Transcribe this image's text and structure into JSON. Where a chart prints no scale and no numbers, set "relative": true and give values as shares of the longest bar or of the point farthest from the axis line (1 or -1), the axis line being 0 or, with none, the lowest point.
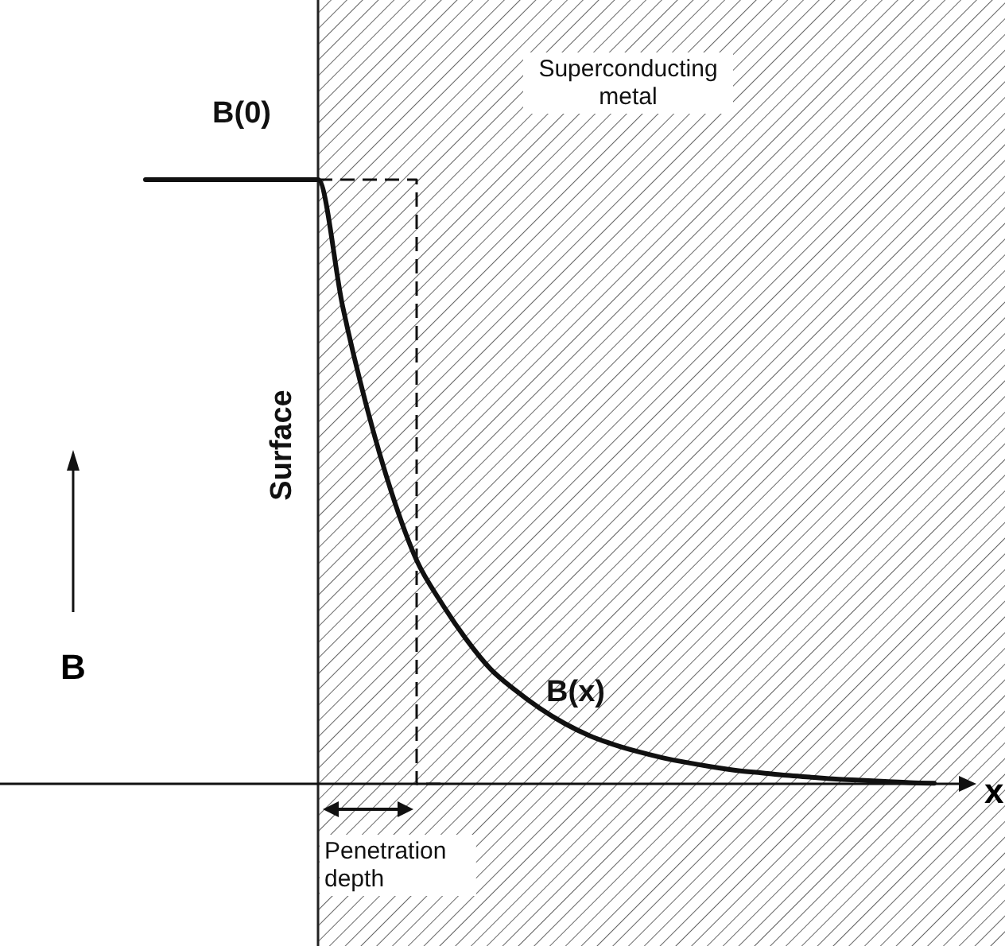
{
  "chart_data": {
    "type": "line",
    "relative": true,
    "xlabel": "x",
    "ylabel": "B",
    "categories": [
      null,
      null,
      null,
      null,
      null,
      null,
      null,
      null,
      null,
      null,
      null,
      null,
      null,
      null,
      null,
      null,
      null,
      null,
      null,
      null,
      null,
      null,
      null,
      null,
      null,
      null,
      null,
      null,
      null,
      null,
      null,
      null,
      null
    ],
    "series": [
      {
        "color": "#111111",
        "values": [
          1,
          1,
          1,
          1,
          1,
          1,
          1,
          1,
          0.79,
          0.62,
          0.48,
          0.37,
          0.3,
          0.24,
          0.19,
          0.155,
          0.125,
          0.1,
          0.08,
          0.065,
          0.053,
          0.043,
          0.035,
          0.028,
          0.022,
          0.018,
          0.014,
          0.011,
          0.008,
          0.006,
          0.004,
          0.002,
          0.001
        ]
      },
      {
        "type": "step",
        "color": "#111111",
        "line_style": "dashed",
        "values": [
          null,
          null,
          null,
          null,
          null,
          null,
          null,
          1,
          1,
          1,
          1,
          1,
          0,
          null,
          null,
          null,
          null,
          null,
          null,
          null,
          null,
          null,
          null,
          null,
          null,
          null,
          null,
          null,
          null,
          null,
          null,
          null,
          null
        ]
      }
    ],
    "annotations": [
      "B(0)",
      "Superconducting metal",
      "Surface",
      "B(x)",
      "Penetration depth"
    ],
    "marker": "none",
    "line_style": "solid"
  }
}
